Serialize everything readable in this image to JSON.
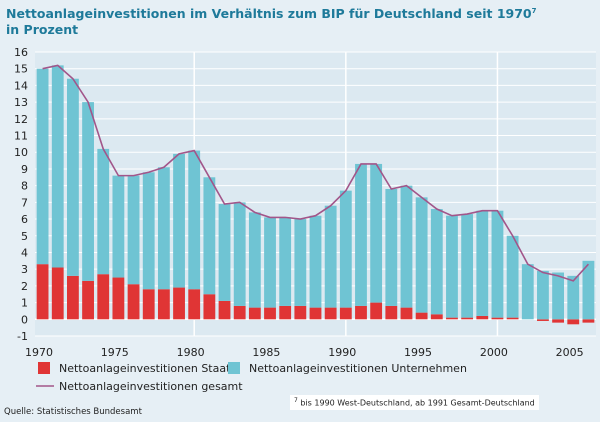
{
  "title_line1": "Nettoanlageinvestitionen im Verhältnis zum BIP für Deutschland seit 1970",
  "title_sup": "7",
  "title_line2": "in Prozent",
  "source": "Quelle: Statistisches Bundesamt",
  "footnote_sup": "7",
  "footnote": "bis 1990 West-Deutschland, ab 1991 Gesamt-Deutschland",
  "colors": {
    "staat": "#e03535",
    "unternehmen": "#6fc4d3",
    "gesamt": "#a2568a",
    "grid": "#ffffff",
    "background": "#e6eff5"
  },
  "chart_data": {
    "type": "bar",
    "stacked": true,
    "x": [
      1970,
      1971,
      1972,
      1973,
      1974,
      1975,
      1976,
      1977,
      1978,
      1979,
      1980,
      1981,
      1982,
      1983,
      1984,
      1985,
      1986,
      1987,
      1988,
      1989,
      1990,
      1991,
      1992,
      1993,
      1994,
      1995,
      1996,
      1997,
      1998,
      1999,
      2000,
      2001,
      2002,
      2003,
      2004,
      2005,
      2006
    ],
    "series": [
      {
        "name": "Nettoanlageinvestitionen Staat",
        "kind": "bar",
        "values": [
          3.3,
          3.1,
          2.6,
          2.3,
          2.7,
          2.5,
          2.1,
          1.8,
          1.8,
          1.9,
          1.8,
          1.5,
          1.1,
          0.8,
          0.7,
          0.7,
          0.8,
          0.8,
          0.7,
          0.7,
          0.7,
          0.8,
          1.0,
          0.8,
          0.7,
          0.4,
          0.3,
          0.1,
          0.1,
          0.2,
          0.1,
          0.1,
          0.0,
          -0.1,
          -0.2,
          -0.3,
          -0.2
        ]
      },
      {
        "name": "Nettoanlageinvestitionen Unternehmen",
        "kind": "bar",
        "values": [
          11.7,
          12.1,
          11.8,
          10.7,
          7.5,
          6.1,
          6.5,
          7.0,
          7.3,
          8.0,
          8.3,
          7.0,
          5.8,
          6.2,
          5.7,
          5.4,
          5.3,
          5.2,
          5.5,
          6.1,
          7.0,
          8.5,
          8.3,
          7.0,
          7.3,
          6.9,
          6.3,
          6.1,
          6.2,
          6.3,
          6.4,
          4.9,
          3.3,
          2.9,
          2.8,
          2.6,
          3.5
        ]
      },
      {
        "name": "Nettoanlageinvestitionen gesamt",
        "kind": "line",
        "values": [
          15.0,
          15.2,
          14.4,
          13.0,
          10.2,
          8.6,
          8.6,
          8.8,
          9.1,
          9.9,
          10.1,
          8.5,
          6.9,
          7.0,
          6.4,
          6.1,
          6.1,
          6.0,
          6.2,
          6.8,
          7.7,
          9.3,
          9.3,
          7.8,
          8.0,
          7.3,
          6.6,
          6.2,
          6.3,
          6.5,
          6.5,
          5.0,
          3.3,
          2.8,
          2.6,
          2.3,
          3.3
        ]
      }
    ],
    "ylim": [
      -1,
      16
    ],
    "yticks": [
      "-1",
      "0",
      "1",
      "2",
      "3",
      "4",
      "5",
      "6",
      "7",
      "8",
      "9",
      "10",
      "11",
      "12",
      "13",
      "14",
      "15",
      "16"
    ],
    "xtick_labels": [
      "1970",
      "1975",
      "1980",
      "1985",
      "1990",
      "1995",
      "2000",
      "2005"
    ],
    "xlabel": "",
    "ylabel": "",
    "grid": true,
    "legend_placement": "bottom"
  }
}
